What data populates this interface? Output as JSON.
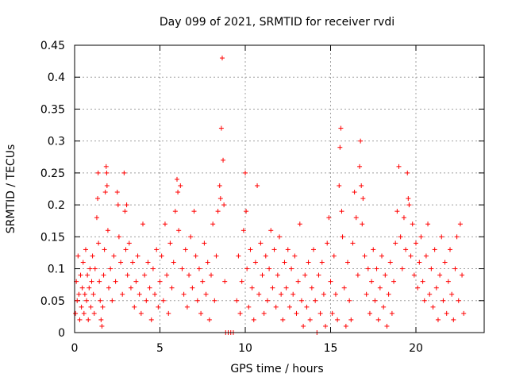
{
  "chart_data": {
    "type": "scatter",
    "title": "Day 099 of 2021, SRMTID for receiver rvdi",
    "xlabel": "GPS time / hours",
    "ylabel": "SRMTID / TECUs",
    "xlim": [
      0,
      24
    ],
    "ylim": [
      0,
      0.45
    ],
    "grid": true,
    "marker": "+",
    "color": "#ff0000",
    "x_ticks": [
      {
        "value": 0,
        "label": "0"
      },
      {
        "value": 5,
        "label": "5"
      },
      {
        "value": 10,
        "label": "10"
      },
      {
        "value": 15,
        "label": "15"
      },
      {
        "value": 20,
        "label": "20"
      }
    ],
    "y_ticks": [
      {
        "value": 0,
        "label": "0"
      },
      {
        "value": 0.05,
        "label": "0.05"
      },
      {
        "value": 0.1,
        "label": "0.1"
      },
      {
        "value": 0.15,
        "label": "0.15"
      },
      {
        "value": 0.2,
        "label": "0.2"
      },
      {
        "value": 0.25,
        "label": "0.25"
      },
      {
        "value": 0.3,
        "label": "0.3"
      },
      {
        "value": 0.35,
        "label": "0.35"
      },
      {
        "value": 0.4,
        "label": "0.4"
      },
      {
        "value": 0.45,
        "label": "0.45"
      }
    ],
    "series": [
      {
        "name": "SRMTID",
        "points": [
          [
            0.05,
            0.03
          ],
          [
            0.1,
            0.08
          ],
          [
            0.15,
            0.05
          ],
          [
            0.2,
            0.12
          ],
          [
            0.25,
            0.06
          ],
          [
            0.3,
            0.02
          ],
          [
            0.35,
            0.09
          ],
          [
            0.4,
            0.04
          ],
          [
            0.45,
            0.07
          ],
          [
            0.5,
            0.11
          ],
          [
            0.55,
            0.03
          ],
          [
            0.6,
            0.06
          ],
          [
            0.65,
            0.13
          ],
          [
            0.7,
            0.05
          ],
          [
            0.75,
            0.09
          ],
          [
            0.8,
            0.02
          ],
          [
            0.85,
            0.07
          ],
          [
            0.9,
            0.1
          ],
          [
            0.95,
            0.04
          ],
          [
            1.0,
            0.08
          ],
          [
            1.05,
            0.12
          ],
          [
            1.1,
            0.06
          ],
          [
            1.15,
            0.03
          ],
          [
            1.2,
            0.1
          ],
          [
            1.3,
            0.18
          ],
          [
            1.35,
            0.21
          ],
          [
            1.38,
            0.25
          ],
          [
            1.4,
            0.14
          ],
          [
            1.45,
            0.08
          ],
          [
            1.5,
            0.05
          ],
          [
            1.55,
            0.02
          ],
          [
            1.6,
            0.01
          ],
          [
            1.65,
            0.04
          ],
          [
            1.7,
            0.09
          ],
          [
            1.75,
            0.13
          ],
          [
            1.8,
            0.22
          ],
          [
            1.85,
            0.26
          ],
          [
            1.88,
            0.25
          ],
          [
            1.9,
            0.23
          ],
          [
            1.95,
            0.16
          ],
          [
            2.0,
            0.07
          ],
          [
            2.1,
            0.1
          ],
          [
            2.2,
            0.05
          ],
          [
            2.3,
            0.12
          ],
          [
            2.4,
            0.08
          ],
          [
            2.5,
            0.22
          ],
          [
            2.55,
            0.2
          ],
          [
            2.6,
            0.15
          ],
          [
            2.7,
            0.11
          ],
          [
            2.8,
            0.06
          ],
          [
            2.9,
            0.25
          ],
          [
            2.95,
            0.19
          ],
          [
            3.0,
            0.13
          ],
          [
            3.05,
            0.2
          ],
          [
            3.1,
            0.09
          ],
          [
            3.2,
            0.14
          ],
          [
            3.3,
            0.07
          ],
          [
            3.4,
            0.11
          ],
          [
            3.5,
            0.04
          ],
          [
            3.6,
            0.08
          ],
          [
            3.7,
            0.12
          ],
          [
            3.8,
            0.06
          ],
          [
            3.9,
            0.03
          ],
          [
            4.0,
            0.17
          ],
          [
            4.1,
            0.09
          ],
          [
            4.2,
            0.05
          ],
          [
            4.3,
            0.11
          ],
          [
            4.4,
            0.07
          ],
          [
            4.5,
            0.02
          ],
          [
            4.6,
            0.1
          ],
          [
            4.7,
            0.06
          ],
          [
            4.8,
            0.13
          ],
          [
            4.9,
            0.04
          ],
          [
            5.0,
            0.08
          ],
          [
            5.1,
            0.12
          ],
          [
            5.2,
            0.05
          ],
          [
            5.3,
            0.17
          ],
          [
            5.4,
            0.09
          ],
          [
            5.5,
            0.03
          ],
          [
            5.6,
            0.14
          ],
          [
            5.7,
            0.07
          ],
          [
            5.8,
            0.11
          ],
          [
            5.9,
            0.19
          ],
          [
            6.0,
            0.24
          ],
          [
            6.05,
            0.22
          ],
          [
            6.1,
            0.16
          ],
          [
            6.2,
            0.23
          ],
          [
            6.3,
            0.1
          ],
          [
            6.4,
            0.06
          ],
          [
            6.5,
            0.13
          ],
          [
            6.6,
            0.04
          ],
          [
            6.7,
            0.09
          ],
          [
            6.8,
            0.15
          ],
          [
            6.9,
            0.07
          ],
          [
            7.0,
            0.19
          ],
          [
            7.1,
            0.12
          ],
          [
            7.2,
            0.05
          ],
          [
            7.3,
            0.1
          ],
          [
            7.4,
            0.03
          ],
          [
            7.5,
            0.08
          ],
          [
            7.6,
            0.14
          ],
          [
            7.7,
            0.06
          ],
          [
            7.8,
            0.11
          ],
          [
            7.9,
            0.02
          ],
          [
            8.0,
            0.09
          ],
          [
            8.1,
            0.17
          ],
          [
            8.2,
            0.05
          ],
          [
            8.3,
            0.12
          ],
          [
            8.4,
            0.19
          ],
          [
            8.5,
            0.23
          ],
          [
            8.55,
            0.21
          ],
          [
            8.6,
            0.32
          ],
          [
            8.65,
            0.43
          ],
          [
            8.7,
            0.27
          ],
          [
            8.75,
            0.2
          ],
          [
            8.8,
            0.08
          ],
          [
            8.85,
            0.0
          ],
          [
            9.0,
            0.0
          ],
          [
            9.15,
            0.0
          ],
          [
            9.3,
            0.0
          ],
          [
            9.5,
            0.05
          ],
          [
            9.6,
            0.12
          ],
          [
            9.7,
            0.03
          ],
          [
            9.8,
            0.08
          ],
          [
            9.9,
            0.16
          ],
          [
            10.0,
            0.25
          ],
          [
            10.05,
            0.19
          ],
          [
            10.1,
            0.1
          ],
          [
            10.2,
            0.04
          ],
          [
            10.3,
            0.13
          ],
          [
            10.4,
            0.07
          ],
          [
            10.5,
            0.02
          ],
          [
            10.6,
            0.11
          ],
          [
            10.7,
            0.23
          ],
          [
            10.8,
            0.06
          ],
          [
            10.9,
            0.14
          ],
          [
            11.0,
            0.09
          ],
          [
            11.1,
            0.03
          ],
          [
            11.2,
            0.12
          ],
          [
            11.3,
            0.05
          ],
          [
            11.4,
            0.1
          ],
          [
            11.5,
            0.16
          ],
          [
            11.6,
            0.07
          ],
          [
            11.7,
            0.13
          ],
          [
            11.8,
            0.04
          ],
          [
            11.9,
            0.09
          ],
          [
            12.0,
            0.15
          ],
          [
            12.1,
            0.06
          ],
          [
            12.2,
            0.02
          ],
          [
            12.3,
            0.11
          ],
          [
            12.4,
            0.07
          ],
          [
            12.5,
            0.13
          ],
          [
            12.6,
            0.04
          ],
          [
            12.7,
            0.1
          ],
          [
            12.8,
            0.06
          ],
          [
            12.9,
            0.12
          ],
          [
            13.0,
            0.03
          ],
          [
            13.1,
            0.08
          ],
          [
            13.2,
            0.17
          ],
          [
            13.3,
            0.05
          ],
          [
            13.4,
            0.01
          ],
          [
            13.5,
            0.09
          ],
          [
            13.6,
            0.04
          ],
          [
            13.7,
            0.11
          ],
          [
            13.8,
            0.02
          ],
          [
            13.9,
            0.07
          ],
          [
            14.0,
            0.13
          ],
          [
            14.1,
            0.05
          ],
          [
            14.2,
            0.0
          ],
          [
            14.3,
            0.09
          ],
          [
            14.4,
            0.03
          ],
          [
            14.5,
            0.11
          ],
          [
            14.6,
            0.06
          ],
          [
            14.7,
            0.01
          ],
          [
            14.8,
            0.14
          ],
          [
            14.9,
            0.18
          ],
          [
            15.0,
            0.08
          ],
          [
            15.1,
            0.03
          ],
          [
            15.2,
            0.12
          ],
          [
            15.3,
            0.06
          ],
          [
            15.4,
            0.02
          ],
          [
            15.5,
            0.23
          ],
          [
            15.55,
            0.29
          ],
          [
            15.6,
            0.32
          ],
          [
            15.65,
            0.19
          ],
          [
            15.7,
            0.15
          ],
          [
            15.8,
            0.07
          ],
          [
            15.9,
            0.01
          ],
          [
            16.0,
            0.11
          ],
          [
            16.1,
            0.05
          ],
          [
            16.2,
            0.02
          ],
          [
            16.3,
            0.14
          ],
          [
            16.4,
            0.22
          ],
          [
            16.5,
            0.18
          ],
          [
            16.6,
            0.09
          ],
          [
            16.7,
            0.26
          ],
          [
            16.75,
            0.3
          ],
          [
            16.8,
            0.23
          ],
          [
            16.85,
            0.17
          ],
          [
            16.9,
            0.21
          ],
          [
            17.0,
            0.12
          ],
          [
            17.1,
            0.06
          ],
          [
            17.2,
            0.1
          ],
          [
            17.3,
            0.03
          ],
          [
            17.4,
            0.08
          ],
          [
            17.5,
            0.13
          ],
          [
            17.6,
            0.05
          ],
          [
            17.7,
            0.1
          ],
          [
            17.8,
            0.02
          ],
          [
            17.9,
            0.07
          ],
          [
            18.0,
            0.12
          ],
          [
            18.1,
            0.04
          ],
          [
            18.2,
            0.09
          ],
          [
            18.3,
            0.01
          ],
          [
            18.4,
            0.06
          ],
          [
            18.5,
            0.11
          ],
          [
            18.6,
            0.03
          ],
          [
            18.7,
            0.08
          ],
          [
            18.8,
            0.14
          ],
          [
            18.9,
            0.19
          ],
          [
            19.0,
            0.26
          ],
          [
            19.1,
            0.15
          ],
          [
            19.2,
            0.1
          ],
          [
            19.3,
            0.18
          ],
          [
            19.4,
            0.13
          ],
          [
            19.5,
            0.25
          ],
          [
            19.55,
            0.21
          ],
          [
            19.6,
            0.2
          ],
          [
            19.7,
            0.12
          ],
          [
            19.8,
            0.17
          ],
          [
            19.9,
            0.09
          ],
          [
            20.0,
            0.14
          ],
          [
            20.1,
            0.07
          ],
          [
            20.2,
            0.11
          ],
          [
            20.3,
            0.15
          ],
          [
            20.4,
            0.08
          ],
          [
            20.5,
            0.05
          ],
          [
            20.6,
            0.12
          ],
          [
            20.7,
            0.17
          ],
          [
            20.8,
            0.06
          ],
          [
            20.9,
            0.1
          ],
          [
            21.0,
            0.04
          ],
          [
            21.1,
            0.13
          ],
          [
            21.2,
            0.07
          ],
          [
            21.3,
            0.02
          ],
          [
            21.4,
            0.09
          ],
          [
            21.5,
            0.15
          ],
          [
            21.6,
            0.05
          ],
          [
            21.7,
            0.11
          ],
          [
            21.8,
            0.03
          ],
          [
            21.9,
            0.08
          ],
          [
            22.0,
            0.13
          ],
          [
            22.1,
            0.06
          ],
          [
            22.2,
            0.02
          ],
          [
            22.3,
            0.1
          ],
          [
            22.4,
            0.15
          ],
          [
            22.5,
            0.05
          ],
          [
            22.6,
            0.17
          ],
          [
            22.7,
            0.09
          ],
          [
            22.8,
            0.03
          ]
        ]
      }
    ]
  }
}
